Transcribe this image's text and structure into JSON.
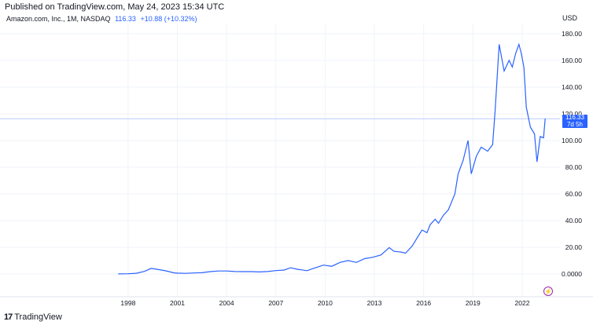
{
  "header": {
    "published": "Published on TradingView.com, May 24, 2023 15:34 UTC",
    "symbol": "Amazon.com, Inc., 1M, NASDAQ",
    "last_price": "116.33",
    "change": "+10.88 (+10.32%)",
    "currency": "USD"
  },
  "price_tag": {
    "price": "116.33",
    "countdown": "7d 5h"
  },
  "footer": {
    "brand": "TradingView"
  },
  "colors": {
    "line": "#2962ff",
    "grid": "#f0f3fa",
    "flash": "#9c27b0"
  },
  "icons": {
    "flash": "lightning-icon",
    "logo": "tradingview-logo-icon"
  },
  "chart_data": {
    "type": "line",
    "title": "",
    "xlabel": "",
    "ylabel": "",
    "ylim": [
      -17,
      187
    ],
    "y_ticks": [
      "0.0000",
      "20.00",
      "40.00",
      "60.00",
      "80.00",
      "100.00",
      "120.00",
      "140.00",
      "160.00",
      "180.00"
    ],
    "y_tick_values": [
      0,
      20,
      40,
      60,
      80,
      100,
      120,
      140,
      160,
      180
    ],
    "x_ticks": [
      "1998",
      "2001",
      "2004",
      "2007",
      "2010",
      "2013",
      "2016",
      "2019",
      "2022"
    ],
    "x_tick_values": [
      1998,
      2001,
      2004,
      2007,
      2010,
      2013,
      2016,
      2019,
      2022
    ],
    "xlim": [
      1990.2,
      2024.3
    ],
    "grid": true,
    "last_value_line": 116.33,
    "series": [
      {
        "x": [
          1997.4,
          1998.0,
          1998.5,
          1999.0,
          1999.4,
          1999.9,
          2000.3,
          2000.8,
          2001.0,
          2001.5,
          2002.0,
          2002.5,
          2003.0,
          2003.5,
          2004.0,
          2004.5,
          2005.0,
          2005.5,
          2006.0,
          2006.5,
          2007.0,
          2007.5,
          2007.9,
          2008.3,
          2008.9,
          2009.3,
          2009.9,
          2010.4,
          2010.9,
          2011.4,
          2011.9,
          2012.4,
          2012.9,
          2013.4,
          2013.9,
          2014.2,
          2014.6,
          2014.9,
          2015.3,
          2015.6,
          2015.9,
          2016.2,
          2016.4,
          2016.7,
          2016.9,
          2017.2,
          2017.5,
          2017.9,
          2018.1,
          2018.4,
          2018.7,
          2018.9,
          2019.2,
          2019.5,
          2019.9,
          2020.2,
          2020.35,
          2020.6,
          2020.9,
          2021.2,
          2021.4,
          2021.6,
          2021.8,
          2021.95,
          2022.1,
          2022.25,
          2022.5,
          2022.75,
          2022.9,
          2023.1,
          2023.3,
          2023.4
        ],
        "values": [
          0.1,
          0.2,
          0.6,
          2.0,
          4.2,
          3.3,
          2.4,
          0.9,
          0.7,
          0.5,
          0.8,
          1.0,
          1.8,
          2.3,
          2.3,
          1.9,
          1.8,
          1.8,
          1.6,
          1.9,
          2.6,
          3.0,
          4.7,
          3.6,
          2.5,
          4.3,
          6.7,
          5.8,
          8.7,
          10.1,
          8.7,
          11.5,
          12.6,
          14.3,
          19.8,
          17.0,
          16.5,
          15.6,
          21.0,
          27.0,
          33.0,
          31.0,
          37.0,
          41.0,
          38.0,
          44.0,
          48.0,
          60.0,
          75.0,
          85.0,
          100.0,
          75.0,
          88.0,
          95.0,
          92.0,
          97.0,
          122.0,
          172.0,
          152.0,
          160.0,
          155.0,
          165.0,
          172.0,
          165.0,
          155.0,
          125.0,
          110.0,
          105.0,
          84.0,
          103.0,
          102.0,
          116.33
        ]
      }
    ]
  }
}
